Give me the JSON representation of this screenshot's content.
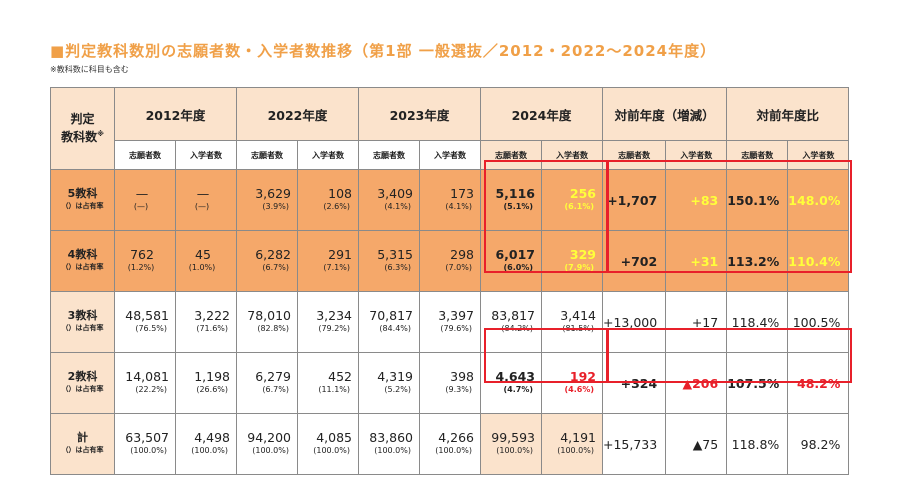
{
  "title": "■判定教科数別の志願者数・入学者数推移（第1部 一般選抜／2012・2022〜2024年度）",
  "note": "※教科数に科目も含む",
  "header": {
    "corner_line1": "判定",
    "corner_line2": "教科数",
    "corner_mark": "※",
    "years": [
      "2012年度",
      "2022年度",
      "2023年度",
      "2024年度",
      "対前年度（増減）",
      "対前年度比"
    ],
    "sub_applicants": "志願者数",
    "sub_enrolled": "入学者数"
  },
  "rows": [
    {
      "label": "5教科",
      "sublabel": "（）は占有率",
      "y2012": {
        "a": "—",
        "ap": "(—)",
        "e": "—",
        "ep": "(—)"
      },
      "y2022": {
        "a": "3,629",
        "ap": "(3.9%)",
        "e": "108",
        "ep": "(2.6%)"
      },
      "y2023": {
        "a": "3,409",
        "ap": "(4.1%)",
        "e": "173",
        "ep": "(4.1%)"
      },
      "y2024": {
        "a": "5,116",
        "ap": "(5.1%)",
        "e": "256",
        "ep": "(6.1%)"
      },
      "diff": {
        "a": "+1,707",
        "e": "+83"
      },
      "ratio": {
        "a": "150.1%",
        "e": "148.0%"
      }
    },
    {
      "label": "4教科",
      "sublabel": "（）は占有率",
      "y2012": {
        "a": "762",
        "ap": "(1.2%)",
        "e": "45",
        "ep": "(1.0%)"
      },
      "y2022": {
        "a": "6,282",
        "ap": "(6.7%)",
        "e": "291",
        "ep": "(7.1%)"
      },
      "y2023": {
        "a": "5,315",
        "ap": "(6.3%)",
        "e": "298",
        "ep": "(7.0%)"
      },
      "y2024": {
        "a": "6,017",
        "ap": "(6.0%)",
        "e": "329",
        "ep": "(7.9%)"
      },
      "diff": {
        "a": "+702",
        "e": "+31"
      },
      "ratio": {
        "a": "113.2%",
        "e": "110.4%"
      }
    },
    {
      "label": "3教科",
      "sublabel": "（）は占有率",
      "y2012": {
        "a": "48,581",
        "ap": "(76.5%)",
        "e": "3,222",
        "ep": "(71.6%)"
      },
      "y2022": {
        "a": "78,010",
        "ap": "(82.8%)",
        "e": "3,234",
        "ep": "(79.2%)"
      },
      "y2023": {
        "a": "70,817",
        "ap": "(84.4%)",
        "e": "3,397",
        "ep": "(79.6%)"
      },
      "y2024": {
        "a": "83,817",
        "ap": "(84.2%)",
        "e": "3,414",
        "ep": "(81.5%)"
      },
      "diff": {
        "a": "+13,000",
        "e": "+17"
      },
      "ratio": {
        "a": "118.4%",
        "e": "100.5%"
      }
    },
    {
      "label": "2教科",
      "sublabel": "（）は占有率",
      "y2012": {
        "a": "14,081",
        "ap": "(22.2%)",
        "e": "1,198",
        "ep": "(26.6%)"
      },
      "y2022": {
        "a": "6,279",
        "ap": "(6.7%)",
        "e": "452",
        "ep": "(11.1%)"
      },
      "y2023": {
        "a": "4,319",
        "ap": "(5.2%)",
        "e": "398",
        "ep": "(9.3%)"
      },
      "y2024": {
        "a": "4,643",
        "ap": "(4.7%)",
        "e": "192",
        "ep": "(4.6%)"
      },
      "diff": {
        "a": "+324",
        "e": "▲206"
      },
      "ratio": {
        "a": "107.5%",
        "e": "48.2%"
      }
    },
    {
      "label": "計",
      "sublabel": "（）は占有率",
      "y2012": {
        "a": "63,507",
        "ap": "(100.0%)",
        "e": "4,498",
        "ep": "(100.0%)"
      },
      "y2022": {
        "a": "94,200",
        "ap": "(100.0%)",
        "e": "4,085",
        "ep": "(100.0%)"
      },
      "y2023": {
        "a": "83,860",
        "ap": "(100.0%)",
        "e": "4,266",
        "ep": "(100.0%)"
      },
      "y2024": {
        "a": "99,593",
        "ap": "(100.0%)",
        "e": "4,191",
        "ep": "(100.0%)"
      },
      "diff": {
        "a": "+15,733",
        "e": "▲75"
      },
      "ratio": {
        "a": "118.8%",
        "e": "98.2%"
      }
    }
  ],
  "colors": {
    "title": "#f0a048",
    "peach": "#fbe3cc",
    "orange": "#f5a86a",
    "highlight_border": "#e8202a",
    "yellow_text": "#ffff3a",
    "red_text": "#e8202a"
  }
}
